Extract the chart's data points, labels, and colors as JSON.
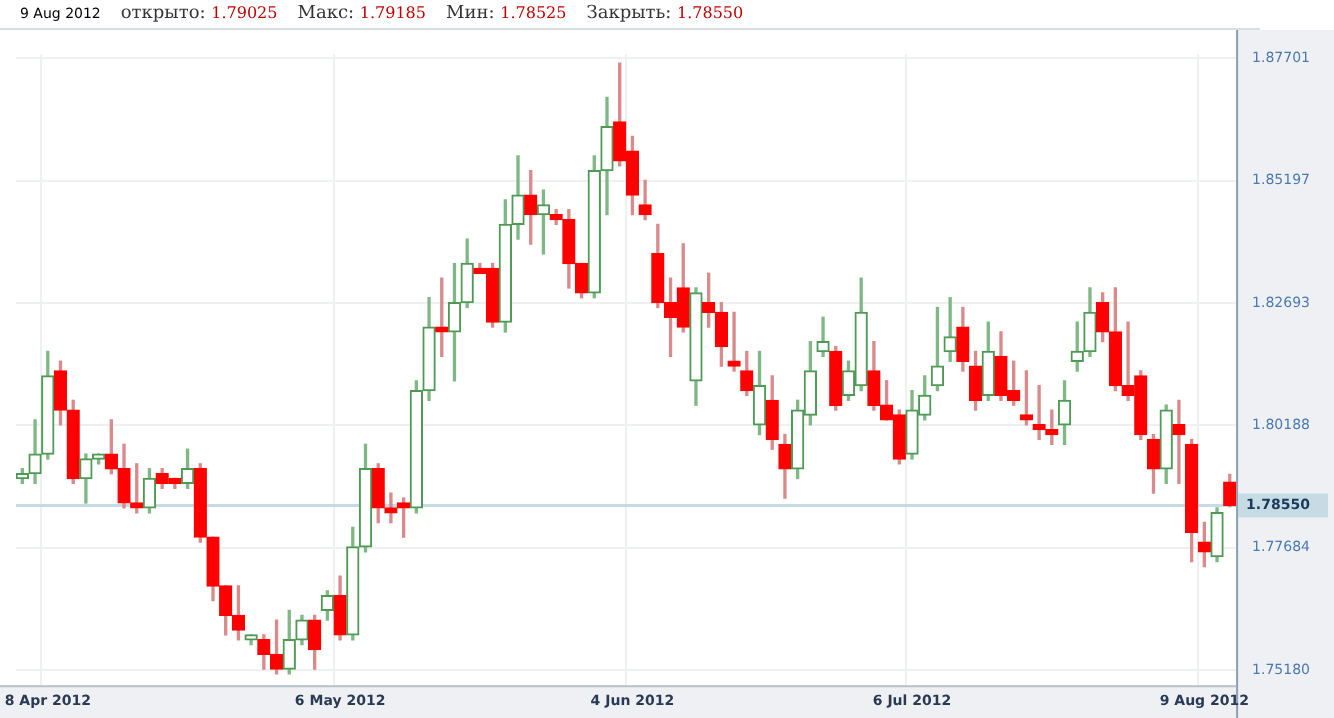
{
  "chart_data": {
    "type": "candlestick",
    "annotations": [
      "9 Aug 2012",
      "открыто: 1.79025",
      "Макс: 1.79185",
      "Мин: 1.78525",
      "Закрыть: 1.78550"
    ],
    "categories": [
      null,
      null,
      "8 Apr 2012",
      null,
      null,
      null,
      null,
      null,
      null,
      null,
      null,
      null,
      null,
      null,
      null,
      null,
      null,
      null,
      null,
      null,
      null,
      null,
      null,
      null,
      null,
      "6 May 2012",
      null,
      null,
      null,
      null,
      null,
      null,
      null,
      null,
      null,
      null,
      null,
      null,
      null,
      null,
      null,
      null,
      null,
      null,
      null,
      null,
      null,
      null,
      "4 Jun 2012",
      null,
      null,
      null,
      null,
      null,
      null,
      null,
      null,
      null,
      null,
      null,
      null,
      null,
      null,
      null,
      null,
      null,
      null,
      null,
      null,
      null,
      "6 Jul 2012",
      null,
      null,
      null,
      null,
      null,
      null,
      null,
      null,
      null,
      null,
      null,
      null,
      null,
      null,
      null,
      null,
      null,
      null,
      null,
      null,
      null,
      null,
      "9 Aug 2012",
      null,
      null
    ],
    "ohlc": [
      [
        1.791,
        1.793,
        1.79,
        1.792
      ],
      [
        1.792,
        1.803,
        1.79,
        1.796
      ],
      [
        1.796,
        1.817,
        1.795,
        1.812
      ],
      [
        1.813,
        1.815,
        1.802,
        1.805
      ],
      [
        1.805,
        1.807,
        1.79,
        1.791
      ],
      [
        1.791,
        1.796,
        1.786,
        1.795
      ],
      [
        1.795,
        1.796,
        1.794,
        1.796
      ],
      [
        1.796,
        1.803,
        1.792,
        1.793
      ],
      [
        1.793,
        1.798,
        1.785,
        1.786
      ],
      [
        1.786,
        1.794,
        1.784,
        1.785
      ],
      [
        1.785,
        1.793,
        1.784,
        1.791
      ],
      [
        1.792,
        1.793,
        1.789,
        1.79
      ],
      [
        1.791,
        1.791,
        1.789,
        1.79
      ],
      [
        1.79,
        1.797,
        1.789,
        1.793
      ],
      [
        1.793,
        1.794,
        1.778,
        1.779
      ],
      [
        1.779,
        1.779,
        1.766,
        1.769
      ],
      [
        1.769,
        1.769,
        1.759,
        1.763
      ],
      [
        1.763,
        1.769,
        1.758,
        1.76
      ],
      [
        1.758,
        1.759,
        1.757,
        1.759
      ],
      [
        1.758,
        1.759,
        1.752,
        1.755
      ],
      [
        1.755,
        1.762,
        1.751,
        1.752
      ],
      [
        1.752,
        1.764,
        1.751,
        1.758
      ],
      [
        1.758,
        1.763,
        1.757,
        1.762
      ],
      [
        1.762,
        1.763,
        1.752,
        1.756
      ],
      [
        1.764,
        1.768,
        1.762,
        1.767
      ],
      [
        1.767,
        1.771,
        1.758,
        1.759
      ],
      [
        1.759,
        1.781,
        1.758,
        1.777
      ],
      [
        1.777,
        1.798,
        1.776,
        1.793
      ],
      [
        1.793,
        1.794,
        1.782,
        1.785
      ],
      [
        1.785,
        1.788,
        1.782,
        1.784
      ],
      [
        1.786,
        1.787,
        1.779,
        1.785
      ],
      [
        1.785,
        1.811,
        1.784,
        1.809
      ],
      [
        1.809,
        1.828,
        1.807,
        1.822
      ],
      [
        1.822,
        1.832,
        1.816,
        1.821
      ],
      [
        1.821,
        1.835,
        1.811,
        1.827
      ],
      [
        1.827,
        1.84,
        1.826,
        1.835
      ],
      [
        1.834,
        1.835,
        1.833,
        1.833
      ],
      [
        1.834,
        1.835,
        1.822,
        1.823
      ],
      [
        1.823,
        1.848,
        1.821,
        1.843
      ],
      [
        1.843,
        1.857,
        1.84,
        1.849
      ],
      [
        1.849,
        1.854,
        1.839,
        1.845
      ],
      [
        1.845,
        1.85,
        1.837,
        1.847
      ],
      [
        1.845,
        1.846,
        1.843,
        1.844
      ],
      [
        1.844,
        1.846,
        1.83,
        1.835
      ],
      [
        1.835,
        1.835,
        1.828,
        1.829
      ],
      [
        1.829,
        1.857,
        1.828,
        1.854
      ],
      [
        1.854,
        1.869,
        1.845,
        1.863
      ],
      [
        1.864,
        1.876,
        1.855,
        1.856
      ],
      [
        1.858,
        1.861,
        1.845,
        1.849
      ],
      [
        1.847,
        1.852,
        1.844,
        1.845
      ],
      [
        1.837,
        1.843,
        1.826,
        1.827
      ],
      [
        1.827,
        1.832,
        1.816,
        1.824
      ],
      [
        1.83,
        1.839,
        1.821,
        1.822
      ],
      [
        1.811,
        1.83,
        1.806,
        1.829
      ],
      [
        1.827,
        1.833,
        1.822,
        1.825
      ],
      [
        1.825,
        1.827,
        1.814,
        1.818
      ],
      [
        1.815,
        1.825,
        1.813,
        1.814
      ],
      [
        1.813,
        1.817,
        1.808,
        1.809
      ],
      [
        1.802,
        1.817,
        1.8,
        1.81
      ],
      [
        1.807,
        1.812,
        1.797,
        1.799
      ],
      [
        1.798,
        1.8,
        1.787,
        1.793
      ],
      [
        1.793,
        1.807,
        1.791,
        1.805
      ],
      [
        1.804,
        1.819,
        1.802,
        1.813
      ],
      [
        1.817,
        1.824,
        1.816,
        1.819
      ],
      [
        1.817,
        1.818,
        1.805,
        1.806
      ],
      [
        1.808,
        1.815,
        1.807,
        1.813
      ],
      [
        1.81,
        1.832,
        1.809,
        1.825
      ],
      [
        1.813,
        1.819,
        1.805,
        1.806
      ],
      [
        1.806,
        1.811,
        1.803,
        1.803
      ],
      [
        1.804,
        1.805,
        1.794,
        1.795
      ],
      [
        1.796,
        1.809,
        1.795,
        1.805
      ],
      [
        1.804,
        1.812,
        1.803,
        1.808
      ],
      [
        1.81,
        1.826,
        1.809,
        1.814
      ],
      [
        1.817,
        1.828,
        1.815,
        1.82
      ],
      [
        1.822,
        1.826,
        1.813,
        1.815
      ],
      [
        1.814,
        1.817,
        1.805,
        1.807
      ],
      [
        1.808,
        1.823,
        1.807,
        1.817
      ],
      [
        1.816,
        1.821,
        1.807,
        1.808
      ],
      [
        1.809,
        1.815,
        1.806,
        1.807
      ],
      [
        1.804,
        1.813,
        1.802,
        1.803
      ],
      [
        1.802,
        1.81,
        1.799,
        1.801
      ],
      [
        1.801,
        1.805,
        1.798,
        1.8
      ],
      [
        1.802,
        1.811,
        1.798,
        1.807
      ],
      [
        1.815,
        1.823,
        1.813,
        1.817
      ],
      [
        1.817,
        1.83,
        1.816,
        1.825
      ],
      [
        1.827,
        1.829,
        1.819,
        1.821
      ],
      [
        1.821,
        1.83,
        1.809,
        1.81
      ],
      [
        1.81,
        1.823,
        1.807,
        1.808
      ],
      [
        1.812,
        1.813,
        1.799,
        1.8
      ],
      [
        1.799,
        1.8,
        1.788,
        1.793
      ],
      [
        1.793,
        1.806,
        1.79,
        1.805
      ],
      [
        1.802,
        1.807,
        1.79,
        1.8
      ],
      [
        1.798,
        1.799,
        1.774,
        1.78
      ],
      [
        1.778,
        1.782,
        1.773,
        1.776
      ],
      [
        1.775,
        1.785,
        1.774,
        1.784
      ],
      [
        1.79025,
        1.79185,
        1.78525,
        1.7855
      ]
    ],
    "ylim": [
      1.7487,
      1.8778
    ],
    "yticks": [
      {
        "value": 1.87701,
        "label": "1.87701"
      },
      {
        "value": 1.85197,
        "label": "1.85197"
      },
      {
        "value": 1.82693,
        "label": "1.82693"
      },
      {
        "value": 1.80188,
        "label": "1.80188"
      },
      {
        "value": 1.77684,
        "label": "1.77684"
      },
      {
        "value": 1.7518,
        "label": "1.75180"
      }
    ],
    "ref_lines": [
      {
        "axis": "y",
        "value": 1.7855,
        "label": "1.78550",
        "color": "#c6dbe4"
      }
    ],
    "grid": true,
    "legend": false
  }
}
